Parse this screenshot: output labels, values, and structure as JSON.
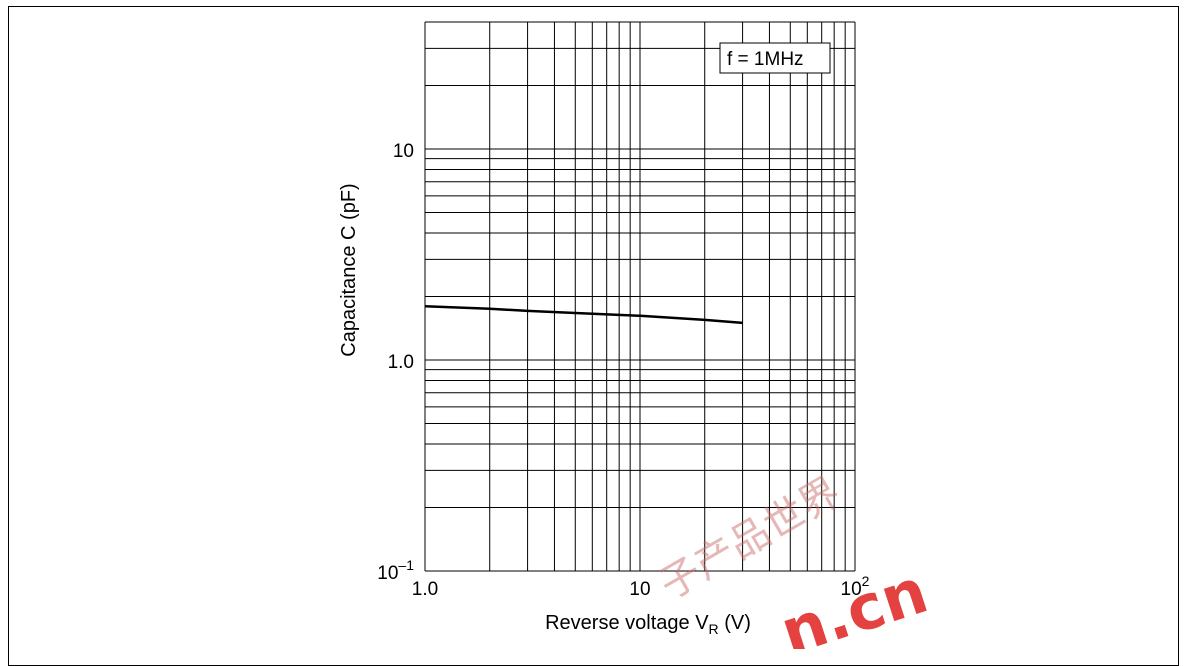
{
  "chart_data": {
    "type": "line",
    "title": "",
    "annotation": "f = 1MHz",
    "x_axis": {
      "label_main": "Reverse voltage  V",
      "label_sub": "R",
      "label_unit": "  (V)",
      "scale": "log",
      "range": [
        1,
        100
      ],
      "ticks": [
        {
          "value": 1,
          "base": "1.0",
          "exp": ""
        },
        {
          "value": 10,
          "base": "10",
          "exp": ""
        },
        {
          "value": 100,
          "base": "10",
          "exp": "2"
        }
      ]
    },
    "y_axis": {
      "label": "Capacitance  C  (pF)",
      "scale": "log",
      "range": [
        0.1,
        40
      ],
      "ticks": [
        {
          "value": 0.1,
          "base": "10",
          "exp": "–1"
        },
        {
          "value": 1,
          "base": "1.0",
          "exp": ""
        },
        {
          "value": 10,
          "base": "10",
          "exp": ""
        }
      ]
    },
    "grid": true,
    "series": [
      {
        "x": [
          1,
          2,
          3,
          5,
          10,
          20,
          30
        ],
        "y": [
          1.8,
          1.75,
          1.71,
          1.67,
          1.62,
          1.55,
          1.5
        ]
      }
    ]
  },
  "watermark": {
    "latin": "n.cn",
    "cjk": "子产品世界"
  }
}
